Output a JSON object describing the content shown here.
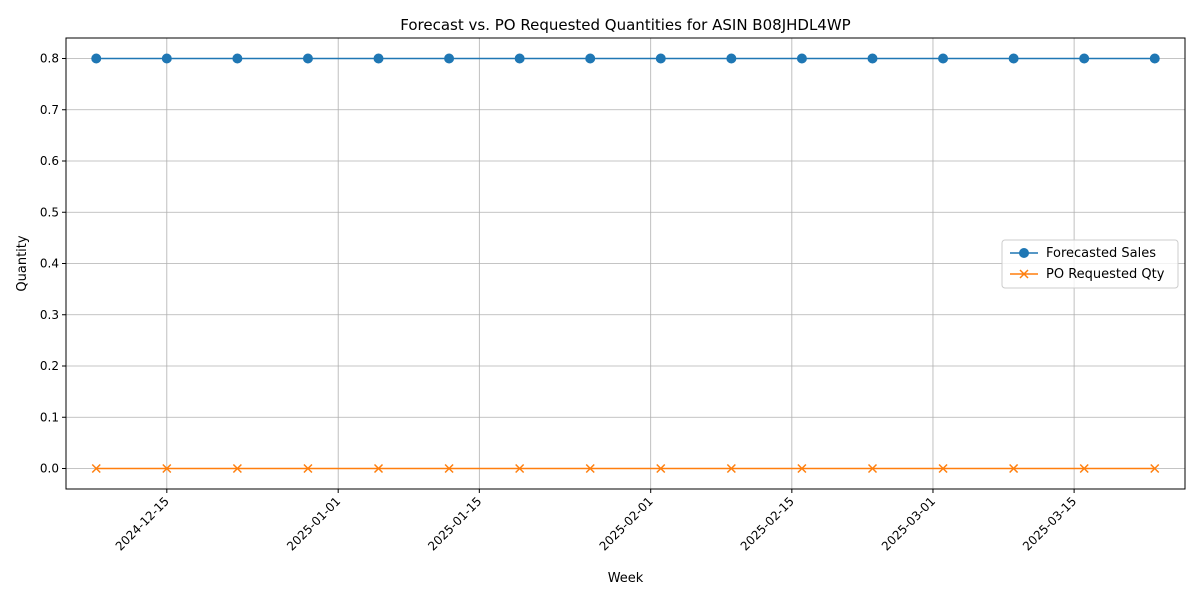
{
  "chart_data": {
    "type": "line",
    "title": "Forecast vs. PO Requested Quantities for ASIN B08JHDL4WP",
    "xlabel": "Week",
    "ylabel": "Quantity",
    "x": [
      "2024-12-08",
      "2024-12-15",
      "2024-12-22",
      "2024-12-29",
      "2025-01-05",
      "2025-01-12",
      "2025-01-19",
      "2025-01-26",
      "2025-02-02",
      "2025-02-09",
      "2025-02-16",
      "2025-02-23",
      "2025-03-02",
      "2025-03-09",
      "2025-03-16",
      "2025-03-23"
    ],
    "xlim": [
      "2024-12-05",
      "2025-03-26"
    ],
    "x_ticks": [
      "2024-12-15",
      "2025-01-01",
      "2025-01-15",
      "2025-02-01",
      "2025-02-15",
      "2025-03-01",
      "2025-03-15"
    ],
    "ylim": [
      -0.04,
      0.84
    ],
    "y_ticks": [
      0.0,
      0.1,
      0.2,
      0.3,
      0.4,
      0.5,
      0.6,
      0.7,
      0.8
    ],
    "y_tick_labels": [
      "0.0",
      "0.1",
      "0.2",
      "0.3",
      "0.4",
      "0.5",
      "0.6",
      "0.7",
      "0.8"
    ],
    "grid": true,
    "legend_position": "center-right",
    "series": [
      {
        "name": "Forecasted Sales",
        "color": "#1f77b4",
        "marker": "circle",
        "values": [
          0.8,
          0.8,
          0.8,
          0.8,
          0.8,
          0.8,
          0.8,
          0.8,
          0.8,
          0.8,
          0.8,
          0.8,
          0.8,
          0.8,
          0.8,
          0.8
        ]
      },
      {
        "name": "PO Requested Qty",
        "color": "#ff7f0e",
        "marker": "x",
        "values": [
          0,
          0,
          0,
          0,
          0,
          0,
          0,
          0,
          0,
          0,
          0,
          0,
          0,
          0,
          0,
          0
        ]
      }
    ]
  }
}
